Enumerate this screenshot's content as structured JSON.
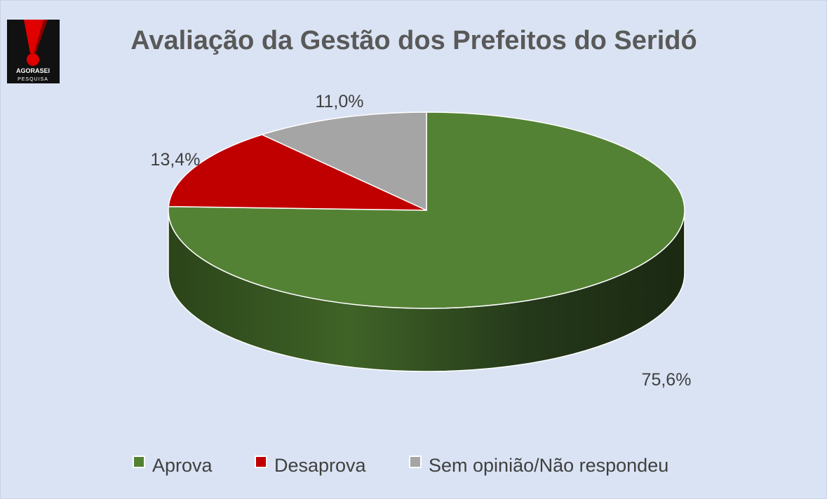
{
  "chart_data": {
    "type": "pie",
    "title": "Avaliação da Gestão dos Prefeitos do Seridó",
    "categories": [
      "Aprova",
      "Desaprova",
      "Sem opinião/Não respondeu"
    ],
    "values": [
      75.6,
      13.4,
      11.0
    ],
    "data_labels": [
      "75,6%",
      "13,4%",
      "11,0%"
    ],
    "colors": [
      "#548235",
      "#c00000",
      "#a5a5a5"
    ],
    "side_colors": [
      "#2e4a1d",
      "#7a0000",
      "#6e6e6e"
    ],
    "legend_position": "bottom",
    "style": "3d"
  },
  "logo": {
    "top_text": "AGORASEI",
    "bottom_text": "PESQUISA",
    "icon": "exclamation-icon"
  }
}
